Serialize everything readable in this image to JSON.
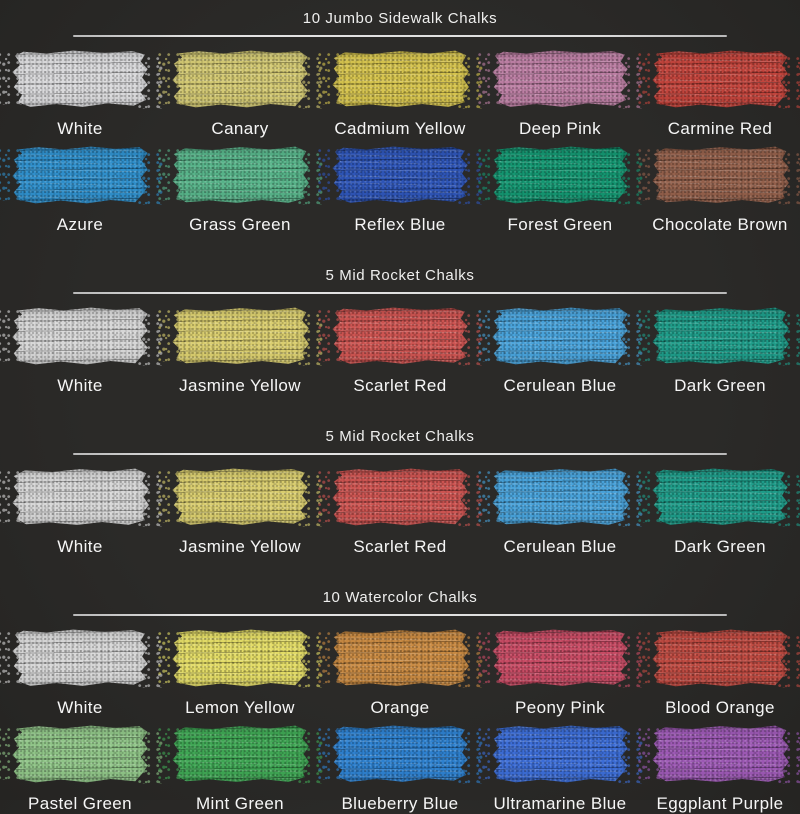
{
  "page": {
    "background": "#2a2928",
    "divider_color": "#d9d9d9",
    "title_color": "#efefee",
    "label_color": "#f6f6f6"
  },
  "sections": [
    {
      "title": "10 Jumbo Sidewalk Chalks",
      "rows": [
        [
          {
            "label": "White",
            "color": "#d9d9db"
          },
          {
            "label": "Canary",
            "color": "#d3c973"
          },
          {
            "label": "Cadmium Yellow",
            "color": "#d6c44e"
          },
          {
            "label": "Deep Pink",
            "color": "#bd7fa4"
          },
          {
            "label": "Carmine Red",
            "color": "#c2443c"
          }
        ],
        [
          {
            "label": "Azure",
            "color": "#2f8fcb"
          },
          {
            "label": "Grass Green",
            "color": "#57b389"
          },
          {
            "label": "Reflex Blue",
            "color": "#2e55b7"
          },
          {
            "label": "Forest Green",
            "color": "#149671"
          },
          {
            "label": "Chocolate Brown",
            "color": "#93604b"
          }
        ]
      ]
    },
    {
      "title": "5 Mid Rocket Chalks",
      "rows": [
        [
          {
            "label": "White",
            "color": "#d6d6d6"
          },
          {
            "label": "Jasmine Yellow",
            "color": "#d9cd6e"
          },
          {
            "label": "Scarlet Red",
            "color": "#cd5451"
          },
          {
            "label": "Cerulean Blue",
            "color": "#48a2da"
          },
          {
            "label": "Dark Green",
            "color": "#1e9c89"
          }
        ]
      ]
    },
    {
      "title": "5 Mid Rocket Chalks",
      "rows": [
        [
          {
            "label": "White",
            "color": "#d6d6d6"
          },
          {
            "label": "Jasmine Yellow",
            "color": "#d9cd6e"
          },
          {
            "label": "Scarlet Red",
            "color": "#cd5451"
          },
          {
            "label": "Cerulean Blue",
            "color": "#48a2da"
          },
          {
            "label": "Dark Green",
            "color": "#1e9c89"
          }
        ]
      ]
    },
    {
      "title": "10 Watercolor Chalks",
      "rows": [
        [
          {
            "label": "White",
            "color": "#d6d6d6"
          },
          {
            "label": "Lemon Yellow",
            "color": "#e3dc66"
          },
          {
            "label": "Orange",
            "color": "#c98a42"
          },
          {
            "label": "Peony Pink",
            "color": "#c84b64"
          },
          {
            "label": "Blood Orange",
            "color": "#bf4a41"
          }
        ],
        [
          {
            "label": "Pastel Green",
            "color": "#8fc487"
          },
          {
            "label": "Mint Green",
            "color": "#3fa654"
          },
          {
            "label": "Blueberry Blue",
            "color": "#2e81cf"
          },
          {
            "label": "Ultramarine Blue",
            "color": "#3c6dd6"
          },
          {
            "label": "Eggplant Purple",
            "color": "#9c59b4"
          }
        ]
      ]
    }
  ]
}
